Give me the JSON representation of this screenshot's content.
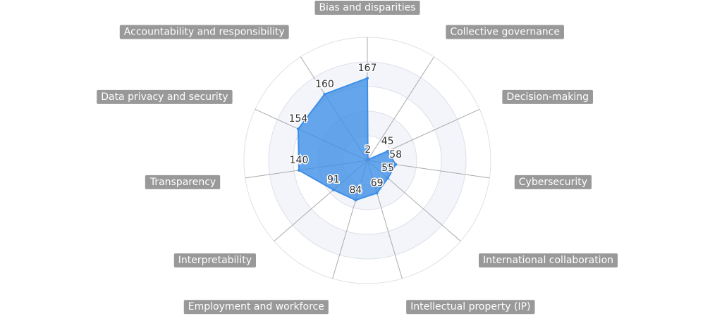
{
  "chart_data": {
    "type": "radar",
    "categories": [
      "Bias and disparities",
      "Collective governance",
      "Decision-making",
      "Cybersecurity",
      "International collaboration",
      "Intellectual property (IP)",
      "Employment and workforce",
      "Interpretability",
      "Transparency",
      "Data privacy and security",
      "Accountability and responsibility"
    ],
    "values": [
      167,
      2,
      45,
      58,
      55,
      69,
      84,
      91,
      140,
      154,
      160
    ],
    "color": "#3d8fe6",
    "ylim": [
      0,
      250
    ],
    "yticks": [
      0,
      50,
      100,
      150,
      200,
      250
    ],
    "grid": true
  }
}
